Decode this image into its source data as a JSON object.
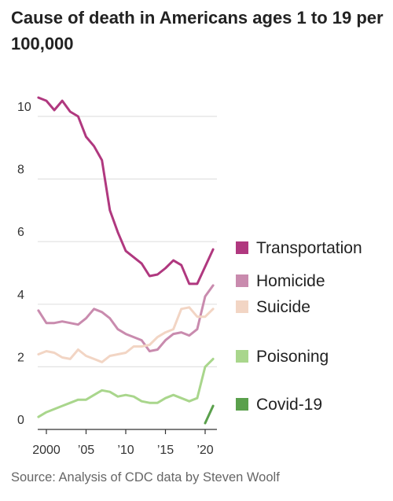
{
  "title": "Cause of death in Americans ages 1 to 19 per 100,000",
  "source": "Source: Analysis of CDC data by Steven Woolf",
  "chart_data": {
    "type": "line",
    "title": "Cause of death in Americans ages 1 to 19 per 100,000",
    "xlabel": "",
    "ylabel": "",
    "xlim": [
      1998.5,
      2021.2
    ],
    "ylim": [
      0,
      11
    ],
    "yticks": [
      0,
      2,
      4,
      6,
      8,
      10
    ],
    "ytick_labels": [
      "0",
      "2",
      "4",
      "6",
      "8",
      "10"
    ],
    "xticks": [
      2000,
      2005,
      2010,
      2015,
      2020
    ],
    "xtick_labels": [
      "2000",
      "’05",
      "’10",
      "’15",
      "’20"
    ],
    "grid": true,
    "legend_position": "right, inline at line ends",
    "series": [
      {
        "name": "Transportation",
        "color": "#b0387f",
        "x": [
          1999,
          2000,
          2001,
          2002,
          2003,
          2004,
          2005,
          2006,
          2007,
          2008,
          2009,
          2010,
          2011,
          2012,
          2013,
          2014,
          2015,
          2016,
          2017,
          2018,
          2019,
          2020,
          2021
        ],
        "y": [
          10.6,
          10.5,
          10.2,
          10.5,
          10.15,
          10.0,
          9.35,
          9.05,
          8.6,
          7.0,
          6.3,
          5.7,
          5.5,
          5.3,
          4.9,
          4.95,
          5.15,
          5.4,
          5.25,
          4.65,
          4.65,
          5.2,
          5.75
        ]
      },
      {
        "name": "Homicide",
        "color": "#c98bae",
        "x": [
          1999,
          2000,
          2001,
          2002,
          2003,
          2004,
          2005,
          2006,
          2007,
          2008,
          2009,
          2010,
          2011,
          2012,
          2013,
          2014,
          2015,
          2016,
          2017,
          2018,
          2019,
          2020,
          2021
        ],
        "y": [
          3.8,
          3.4,
          3.4,
          3.45,
          3.4,
          3.35,
          3.55,
          3.85,
          3.75,
          3.55,
          3.2,
          3.05,
          2.95,
          2.85,
          2.5,
          2.55,
          2.85,
          3.05,
          3.1,
          3.0,
          3.2,
          4.25,
          4.6
        ]
      },
      {
        "name": "Suicide",
        "color": "#f2d5c4",
        "x": [
          1999,
          2000,
          2001,
          2002,
          2003,
          2004,
          2005,
          2006,
          2007,
          2008,
          2009,
          2010,
          2011,
          2012,
          2013,
          2014,
          2015,
          2016,
          2017,
          2018,
          2019,
          2020,
          2021
        ],
        "y": [
          2.4,
          2.5,
          2.45,
          2.3,
          2.25,
          2.55,
          2.35,
          2.25,
          2.15,
          2.35,
          2.4,
          2.45,
          2.65,
          2.65,
          2.7,
          2.95,
          3.1,
          3.2,
          3.85,
          3.9,
          3.6,
          3.6,
          3.85
        ]
      },
      {
        "name": "Poisoning",
        "color": "#a9d68c",
        "x": [
          1999,
          2000,
          2001,
          2002,
          2003,
          2004,
          2005,
          2006,
          2007,
          2008,
          2009,
          2010,
          2011,
          2012,
          2013,
          2014,
          2015,
          2016,
          2017,
          2018,
          2019,
          2020,
          2021
        ],
        "y": [
          0.4,
          0.55,
          0.65,
          0.75,
          0.85,
          0.95,
          0.95,
          1.1,
          1.25,
          1.2,
          1.05,
          1.1,
          1.05,
          0.9,
          0.85,
          0.85,
          1.0,
          1.1,
          1.0,
          0.9,
          1.0,
          2.0,
          2.25
        ]
      },
      {
        "name": "Covid-19",
        "color": "#5aa04c",
        "x": [
          2020,
          2021
        ],
        "y": [
          0.2,
          0.75
        ]
      }
    ]
  }
}
